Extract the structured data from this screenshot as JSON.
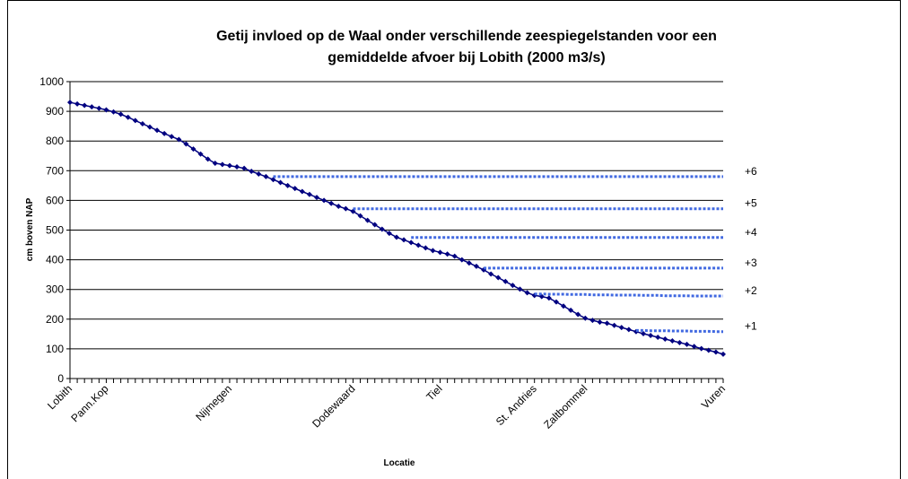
{
  "chart_data": {
    "type": "line",
    "title": "Getij invloed op de Waal onder verschillende zeespiegelstanden voor een",
    "subtitle": "gemiddelde afvoer bij Lobith (2000 m3/s)",
    "x_label": "Locatie",
    "y_label": "cm boven NAP",
    "categories": [
      "Lobith",
      null,
      null,
      null,
      null,
      "Pann.Kop",
      null,
      null,
      null,
      null,
      null,
      null,
      null,
      null,
      null,
      null,
      null,
      null,
      null,
      null,
      null,
      null,
      "Nijmegen",
      null,
      null,
      null,
      null,
      null,
      null,
      null,
      null,
      null,
      null,
      null,
      null,
      null,
      null,
      null,
      null,
      "Dodewaard",
      null,
      null,
      null,
      null,
      null,
      null,
      null,
      null,
      null,
      null,
      null,
      "Tiel",
      null,
      null,
      null,
      null,
      null,
      null,
      null,
      null,
      null,
      null,
      null,
      null,
      "St. Andries",
      null,
      null,
      null,
      null,
      null,
      null,
      "Zaltbommel",
      null,
      null,
      null,
      null,
      null,
      null,
      null,
      null,
      null,
      null,
      null,
      null,
      null,
      null,
      null,
      null,
      null,
      null,
      "Vuren"
    ],
    "ylim": [
      0,
      1000
    ],
    "yticks": [
      0,
      100,
      200,
      300,
      400,
      500,
      600,
      700,
      800,
      900,
      1000
    ],
    "grid": true,
    "series": [
      {
        "name": null,
        "color": "#000080",
        "marker": "diamond",
        "values": [
          930,
          925,
          920,
          915,
          910,
          905,
          898,
          890,
          880,
          869,
          858,
          847,
          836,
          825,
          815,
          805,
          790,
          773,
          756,
          739,
          725,
          721,
          717,
          713,
          708,
          698,
          689,
          680,
          670,
          660,
          650,
          640,
          630,
          620,
          610,
          600,
          590,
          580,
          572,
          563,
          548,
          533,
          518,
          503,
          489,
          476,
          467,
          458,
          449,
          440,
          431,
          425,
          419,
          412,
          400,
          389,
          378,
          366,
          352,
          340,
          327,
          314,
          301,
          289,
          280,
          276,
          271,
          258,
          244,
          230,
          216,
          203,
          196,
          190,
          186,
          179,
          172,
          165,
          158,
          151,
          145,
          139,
          133,
          127,
          121,
          115,
          108,
          101,
          95,
          89,
          82
        ]
      },
      {
        "name": "+6",
        "color": "#4169e1",
        "dashed": true,
        "values": [
          null,
          null,
          null,
          null,
          null,
          null,
          null,
          null,
          null,
          null,
          null,
          null,
          null,
          null,
          null,
          null,
          null,
          null,
          null,
          null,
          null,
          null,
          null,
          null,
          null,
          null,
          null,
          null,
          680,
          680,
          680,
          680,
          680,
          680,
          680,
          680,
          680,
          680,
          680,
          680,
          680,
          680,
          680,
          680,
          680,
          680,
          680,
          680,
          680,
          680,
          680,
          680,
          680,
          680,
          680,
          680,
          680,
          680,
          680,
          680,
          680,
          680,
          680,
          680,
          680,
          680,
          680,
          680,
          680,
          680,
          680,
          680,
          680,
          680,
          680,
          680,
          680,
          680,
          680,
          680,
          680,
          680,
          680,
          680,
          680,
          680,
          680,
          680,
          680,
          680,
          680
        ]
      },
      {
        "name": "+5",
        "color": "#4169e1",
        "dashed": true,
        "values": [
          null,
          null,
          null,
          null,
          null,
          null,
          null,
          null,
          null,
          null,
          null,
          null,
          null,
          null,
          null,
          null,
          null,
          null,
          null,
          null,
          null,
          null,
          null,
          null,
          null,
          null,
          null,
          null,
          null,
          null,
          null,
          null,
          null,
          null,
          null,
          null,
          null,
          null,
          null,
          572,
          572,
          572,
          572,
          572,
          572,
          572,
          572,
          572,
          572,
          572,
          572,
          572,
          572,
          572,
          572,
          572,
          572,
          572,
          572,
          572,
          572,
          572,
          572,
          572,
          572,
          572,
          572,
          572,
          572,
          572,
          572,
          572,
          572,
          572,
          572,
          572,
          572,
          572,
          572,
          572,
          572,
          572,
          572,
          572,
          572,
          572,
          572,
          572,
          572,
          572,
          572
        ]
      },
      {
        "name": "+4",
        "color": "#4169e1",
        "dashed": true,
        "values": [
          null,
          null,
          null,
          null,
          null,
          null,
          null,
          null,
          null,
          null,
          null,
          null,
          null,
          null,
          null,
          null,
          null,
          null,
          null,
          null,
          null,
          null,
          null,
          null,
          null,
          null,
          null,
          null,
          null,
          null,
          null,
          null,
          null,
          null,
          null,
          null,
          null,
          null,
          null,
          null,
          null,
          null,
          null,
          null,
          null,
          null,
          null,
          475,
          475,
          475,
          475,
          475,
          475,
          475,
          475,
          475,
          475,
          475,
          475,
          475,
          475,
          475,
          475,
          475,
          475,
          475,
          475,
          475,
          475,
          475,
          475,
          475,
          475,
          475,
          475,
          475,
          475,
          475,
          475,
          475,
          475,
          475,
          475,
          475,
          475,
          475,
          475,
          475,
          475,
          475,
          475
        ]
      },
      {
        "name": "+3",
        "color": "#4169e1",
        "dashed": true,
        "values": [
          null,
          null,
          null,
          null,
          null,
          null,
          null,
          null,
          null,
          null,
          null,
          null,
          null,
          null,
          null,
          null,
          null,
          null,
          null,
          null,
          null,
          null,
          null,
          null,
          null,
          null,
          null,
          null,
          null,
          null,
          null,
          null,
          null,
          null,
          null,
          null,
          null,
          null,
          null,
          null,
          null,
          null,
          null,
          null,
          null,
          null,
          null,
          null,
          null,
          null,
          null,
          null,
          null,
          null,
          null,
          null,
          null,
          372,
          372,
          372,
          372,
          372,
          372,
          372,
          372,
          372,
          372,
          372,
          372,
          372,
          372,
          372,
          372,
          372,
          372,
          372,
          372,
          372,
          372,
          372,
          372,
          372,
          372,
          372,
          372,
          372,
          372,
          372,
          372,
          372,
          372
        ]
      },
      {
        "name": "+2",
        "color": "#4169e1",
        "dashed": true,
        "values": [
          null,
          null,
          null,
          null,
          null,
          null,
          null,
          null,
          null,
          null,
          null,
          null,
          null,
          null,
          null,
          null,
          null,
          null,
          null,
          null,
          null,
          null,
          null,
          null,
          null,
          null,
          null,
          null,
          null,
          null,
          null,
          null,
          null,
          null,
          null,
          null,
          null,
          null,
          null,
          null,
          null,
          null,
          null,
          null,
          null,
          null,
          null,
          null,
          null,
          null,
          null,
          null,
          null,
          null,
          null,
          null,
          null,
          null,
          null,
          null,
          null,
          null,
          null,
          null,
          285,
          285,
          284,
          284,
          284,
          283,
          283,
          283,
          282,
          282,
          282,
          281,
          281,
          281,
          281,
          280,
          280,
          280,
          279,
          279,
          279,
          279,
          278,
          278,
          278,
          278,
          278
        ]
      },
      {
        "name": "+1",
        "color": "#4169e1",
        "dashed": true,
        "values": [
          null,
          null,
          null,
          null,
          null,
          null,
          null,
          null,
          null,
          null,
          null,
          null,
          null,
          null,
          null,
          null,
          null,
          null,
          null,
          null,
          null,
          null,
          null,
          null,
          null,
          null,
          null,
          null,
          null,
          null,
          null,
          null,
          null,
          null,
          null,
          null,
          null,
          null,
          null,
          null,
          null,
          null,
          null,
          null,
          null,
          null,
          null,
          null,
          null,
          null,
          null,
          null,
          null,
          null,
          null,
          null,
          null,
          null,
          null,
          null,
          null,
          null,
          null,
          null,
          null,
          null,
          null,
          null,
          null,
          null,
          null,
          null,
          null,
          null,
          null,
          null,
          null,
          null,
          162,
          162,
          161,
          161,
          161,
          160,
          160,
          160,
          159,
          159,
          159,
          158,
          158
        ]
      }
    ]
  }
}
